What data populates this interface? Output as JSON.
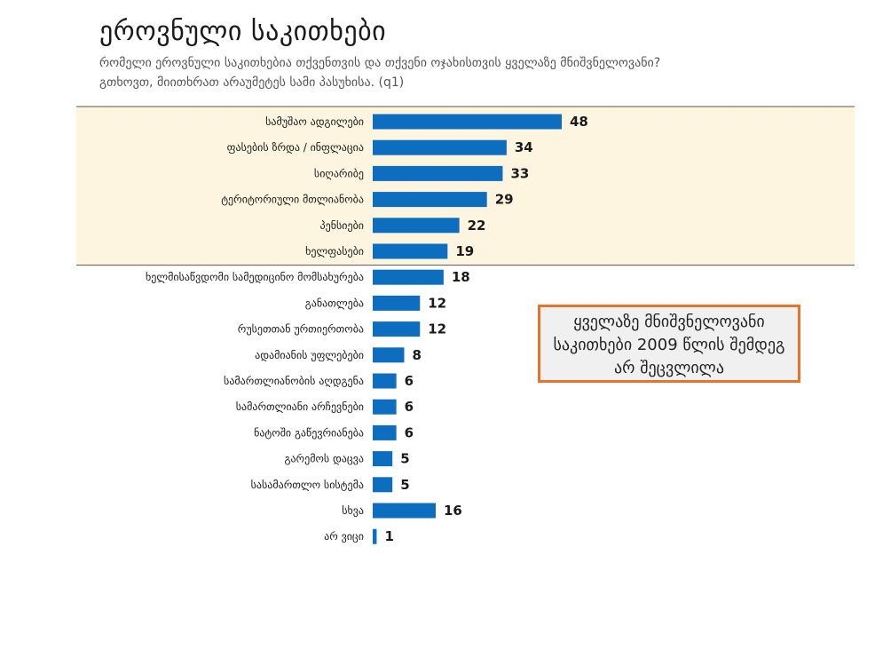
{
  "title": "ეროვნული საკითხები",
  "subtitle": "რომელი ეროვნული საკითხებია თქვენთვის და თქვენი ოჯახისთვის ყველაზე მნიშვნელოვანი? გთხოვთ, მიითხრათ არაუმეტეს სამი პასუხისა. (q1)",
  "callout": {
    "text": "ყველაზე მნიშვნელოვანი საკითხები 2009 წლის შემდეგ არ შეცვლილა"
  },
  "colors": {
    "bar": "#0d6ec0",
    "highlight": "#fdf5df",
    "callout_border": "#e8732a"
  },
  "chart_data": {
    "type": "bar",
    "orientation": "horizontal",
    "categories": [
      "სამუშაო ადგილები",
      "ფასების ზრდა / ინფლაცია",
      "სიღარიბე",
      "ტერიტორიული მთლიანობა",
      "პენსიები",
      "ხელფასები",
      "ხელმისაწვდომი სამედიცინო მომსახურება",
      "განათლება",
      "რუსეთთან ურთიერთობა",
      "ადამიანის უფლებები",
      "სამართლიანობის აღდგენა",
      "სამართლიანი არჩევნები",
      "ნატოში გაწევრიანება",
      "გარემოს დაცვა",
      "სასამართლო სისტემა",
      "სხვა",
      "არ ვიცი"
    ],
    "values": [
      48,
      34,
      33,
      29,
      22,
      19,
      18,
      12,
      12,
      8,
      6,
      6,
      6,
      5,
      5,
      16,
      1
    ],
    "highlighted_count": 6,
    "xlim": [
      0,
      100
    ]
  }
}
